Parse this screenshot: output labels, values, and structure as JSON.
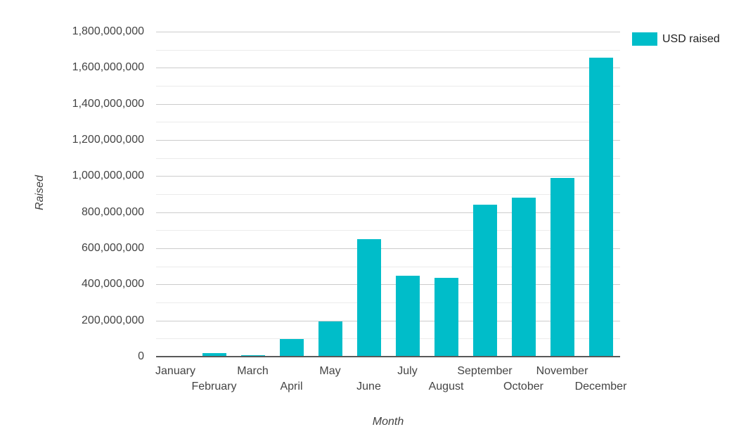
{
  "chart_data": {
    "type": "bar",
    "title": "",
    "categories": [
      "January",
      "February",
      "March",
      "April",
      "May",
      "June",
      "July",
      "August",
      "September",
      "October",
      "November",
      "December"
    ],
    "series": [
      {
        "name": "USD raised",
        "values": [
          4000000,
          19000000,
          6000000,
          98000000,
          196000000,
          650000000,
          448000000,
          436000000,
          840000000,
          882000000,
          990000000,
          1655000000
        ]
      }
    ],
    "xlabel": "Month",
    "ylabel": "Raised",
    "ylim": [
      0,
      1800000000
    ],
    "y_major_step": 200000000,
    "y_minor_step": 100000000,
    "y_tick_labels": [
      "1,800,000,000",
      "1,600,000,000",
      "1,400,000,000",
      "1,200,000,000",
      "1,000,000,000",
      "800,000,000",
      "600,000,000",
      "400,000,000",
      "200,000,000",
      "0"
    ],
    "grid": true,
    "legend_position": "top-right",
    "bar_color": "#00bdc9",
    "x_label_layout": "staggered-two-rows"
  },
  "legend": {
    "label": "USD raised",
    "swatch_color": "#00bdc9"
  },
  "colors": {
    "bar": "#00bdc9",
    "major_gridline": "#cccccc",
    "minor_gridline": "#ebebeb",
    "axis_line": "#595959",
    "tick_text": "#444444",
    "axis_title_text": "#424242",
    "legend_text": "#1f1f1f",
    "background": "#ffffff"
  }
}
